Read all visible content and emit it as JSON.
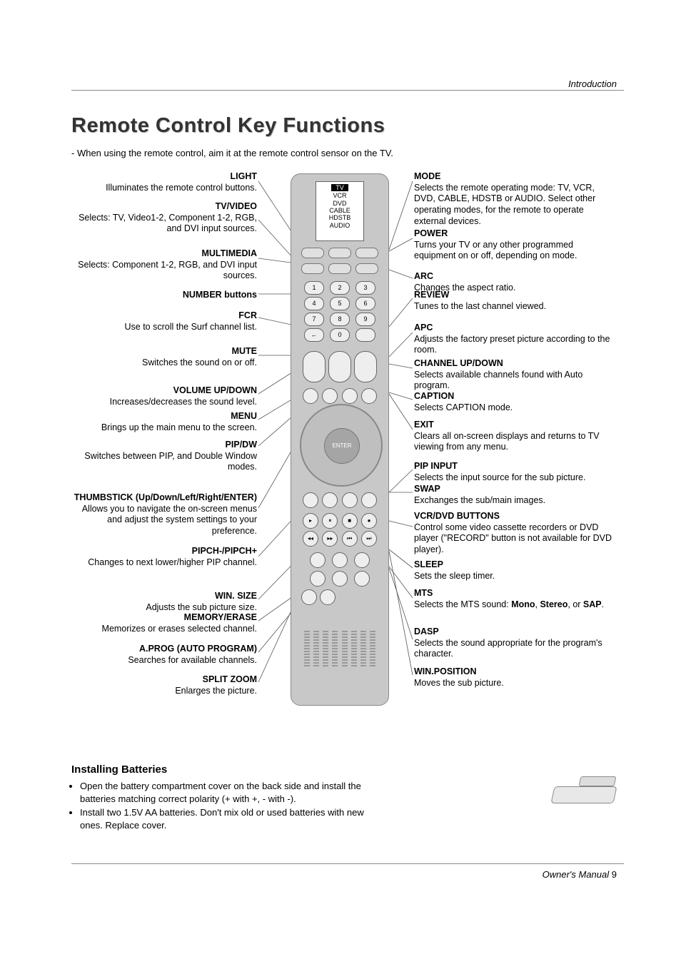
{
  "header": {
    "section": "Introduction",
    "title": "Remote Control Key Functions",
    "intro": "- When using the remote control, aim it at the remote control sensor on the TV."
  },
  "remote_display": {
    "modes": [
      "TV",
      "VCR",
      "DVD",
      "CABLE",
      "HDSTB",
      "AUDIO"
    ]
  },
  "left_items": [
    {
      "label": "LIGHT",
      "desc": "Illuminates the remote control buttons."
    },
    {
      "label": "TV/VIDEO",
      "desc": "Selects: TV, Video1-2, Component 1-2, RGB, and DVI input sources."
    },
    {
      "label": "MULTIMEDIA",
      "desc": "Selects: Component 1-2, RGB, and DVI input sources."
    },
    {
      "label": "NUMBER buttons",
      "desc": ""
    },
    {
      "label": "FCR",
      "desc": "Use to scroll the Surf channel list."
    },
    {
      "label": "MUTE",
      "desc": "Switches the sound on or off."
    },
    {
      "label": "VOLUME UP/DOWN",
      "desc": "Increases/decreases the sound level."
    },
    {
      "label": "MENU",
      "desc": "Brings up the main menu to the screen."
    },
    {
      "label": "PIP/DW",
      "desc": "Switches between PIP, and Double Window modes."
    },
    {
      "label": "THUMBSTICK (Up/Down/Left/Right/ENTER)",
      "desc": "Allows you to navigate the on-screen menus and  adjust the system settings to your preference."
    },
    {
      "label": "PIPCH-/PIPCH+",
      "desc": "Changes to next lower/higher PIP channel."
    },
    {
      "label": "WIN. SIZE",
      "desc": "Adjusts the sub picture size."
    },
    {
      "label": "MEMORY/ERASE",
      "desc": "Memorizes or erases selected channel."
    },
    {
      "label": "A.PROG (AUTO PROGRAM)",
      "desc": "Searches for available channels."
    },
    {
      "label": "SPLIT ZOOM",
      "desc": "Enlarges the picture."
    }
  ],
  "right_items": [
    {
      "label": "MODE",
      "desc": "Selects the remote operating mode: TV, VCR, DVD, CABLE, HDSTB or AUDIO. Select other operating modes, for the remote to operate external devices."
    },
    {
      "label": "POWER",
      "desc": "Turns your TV or any other programmed equipment on or off, depending on mode."
    },
    {
      "label": "ARC",
      "desc": "Changes the aspect ratio."
    },
    {
      "label": "REVIEW",
      "desc": "Tunes to the last channel viewed."
    },
    {
      "label": "APC",
      "desc": "Adjusts the factory preset picture according to the room."
    },
    {
      "label": "CHANNEL UP/DOWN",
      "desc": "Selects available channels found with Auto program."
    },
    {
      "label": "CAPTION",
      "desc": "Selects CAPTION mode."
    },
    {
      "label": "EXIT",
      "desc": "Clears all on-screen displays and returns to TV viewing from any menu."
    },
    {
      "label": "PIP INPUT",
      "desc": "Selects the input source for the sub picture."
    },
    {
      "label": "SWAP",
      "desc": "Exchanges the sub/main images."
    },
    {
      "label": "VCR/DVD BUTTONS",
      "desc": "Control some video cassette recorders or DVD player (\"RECORD\" button is not available for DVD player)."
    },
    {
      "label": "SLEEP",
      "desc": "Sets the sleep timer."
    },
    {
      "label": "MTS",
      "desc_pre": "Selects the MTS sound: ",
      "bold1": "Mono",
      "mid1": ", ",
      "bold2": "Stereo",
      "mid2": ", or ",
      "bold3": "SAP",
      "desc_post": "."
    },
    {
      "label": "DASP",
      "desc": "Selects the sound appropriate for the program's character."
    },
    {
      "label": "WIN.POSITION",
      "desc": "Moves the sub picture."
    }
  ],
  "install": {
    "heading": "Installing Batteries",
    "bullets": [
      "Open the battery compartment cover on the back side and install the batteries matching correct polarity (+ with +, - with -).",
      "Install two 1.5V AA batteries. Don't mix old or used batteries with new ones. Replace cover."
    ]
  },
  "footer": {
    "text": "Owner's Manual",
    "page": "9"
  },
  "layout": {
    "left_tops": [
      0,
      42,
      108,
      166,
      195,
      245,
      300,
      336,
      376,
      450,
      525,
      588,
      618,
      662,
      705
    ],
    "right_tops": [
      0,
      80,
      140,
      166,
      212,
      262,
      308,
      348,
      406,
      438,
      476,
      544,
      584,
      638,
      694
    ],
    "left_leader_y": [
      14,
      68,
      122,
      172,
      205,
      258,
      312,
      348,
      385,
      472,
      540,
      600,
      630,
      674,
      716
    ],
    "left_remote_y": [
      110,
      132,
      135,
      172,
      215,
      258,
      270,
      310,
      310,
      380,
      460,
      530,
      568,
      568,
      568
    ],
    "left_remote_x": [
      325,
      320,
      360,
      310,
      308,
      325,
      328,
      325,
      348,
      315,
      335,
      330,
      350,
      350,
      330
    ],
    "right_leader_y": [
      14,
      94,
      150,
      178,
      226,
      276,
      320,
      362,
      418,
      450,
      498,
      556,
      598,
      656,
      706
    ],
    "right_remote_y": [
      110,
      112,
      138,
      218,
      260,
      270,
      310,
      312,
      450,
      450,
      490,
      530,
      554,
      556,
      532
    ]
  }
}
